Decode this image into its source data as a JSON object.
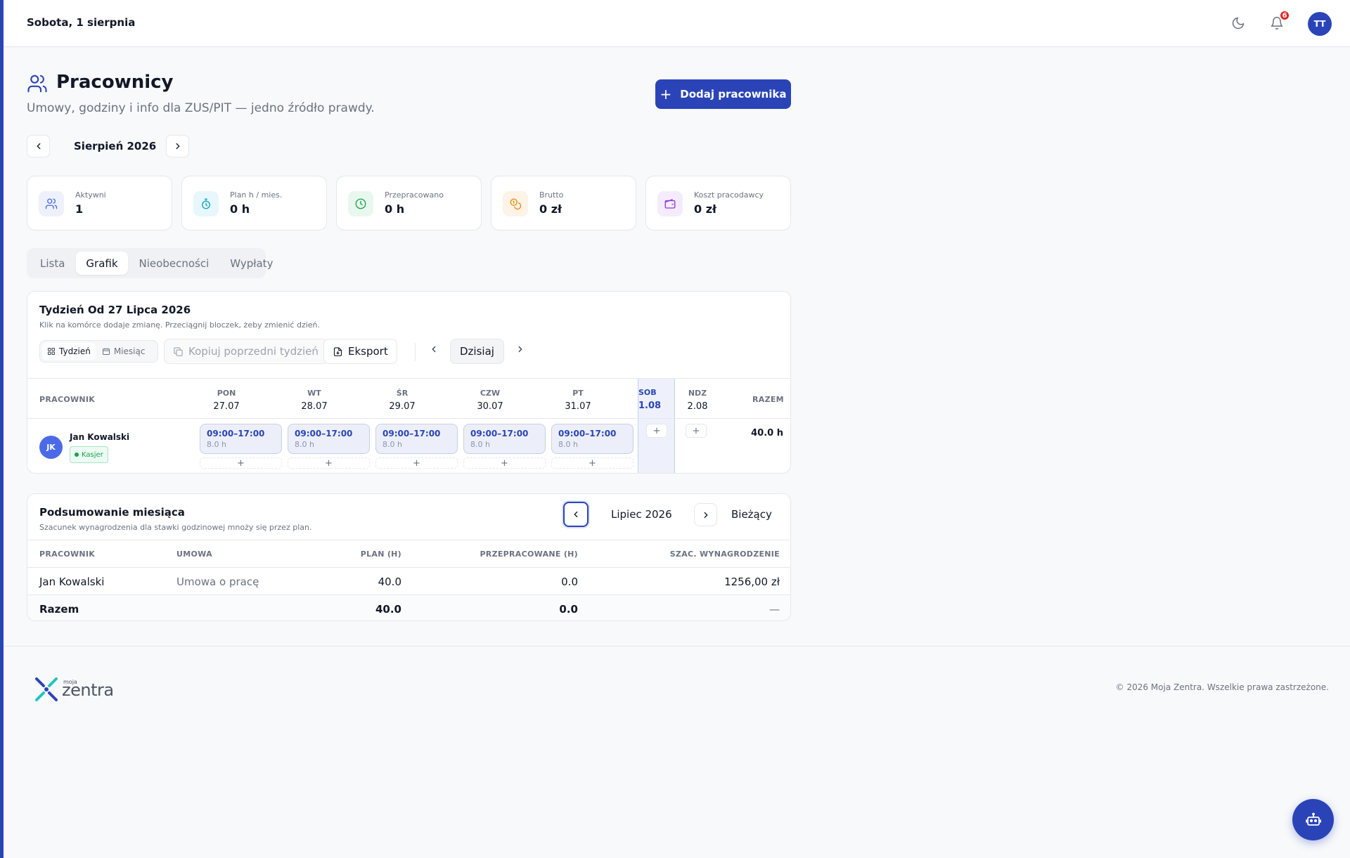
{
  "topbar": {
    "date": "Sobota, 1 sierpnia",
    "notifications_count": "6",
    "user_initials": "TT"
  },
  "header": {
    "title": "Pracownicy",
    "subtitle": "Umowy, godziny i info dla ZUS/PIT — jedno źródło prawdy.",
    "add_button_label": "Dodaj pracownika"
  },
  "month_nav": {
    "label": "Sierpień 2026"
  },
  "stats": [
    {
      "label": "Aktywni",
      "value": "1",
      "icon": "users-icon",
      "color": "#4a6ae8"
    },
    {
      "label": "Plan h / mies.",
      "value": "0 h",
      "icon": "stopwatch-icon",
      "color": "#0ea5c6"
    },
    {
      "label": "Przepracowano",
      "value": "0 h",
      "icon": "clock-icon",
      "color": "#16a34a"
    },
    {
      "label": "Brutto",
      "value": "0 zł",
      "icon": "coins-icon",
      "color": "#ea8a0c"
    },
    {
      "label": "Koszt pracodawcy",
      "value": "0 zł",
      "icon": "wallet-icon",
      "color": "#9333ea"
    }
  ],
  "tabs": [
    {
      "label": "Lista",
      "active": false
    },
    {
      "label": "Grafik",
      "active": true
    },
    {
      "label": "Nieobecności",
      "active": false
    },
    {
      "label": "Wypłaty",
      "active": false
    }
  ],
  "schedule": {
    "title": "Tydzień Od 27 Lipca 2026",
    "subtitle": "Klik na komórce dodaje zmianę. Przeciągnij bloczek, żeby zmienić dzień.",
    "view_week": "Tydzień",
    "view_month": "Miesiąc",
    "copy_label": "Kopiuj poprzedni tydzień",
    "export_label": "Eksport",
    "today_label": "Dzisiaj",
    "col_employee": "PRACOWNIK",
    "col_total": "RAZEM",
    "days": [
      {
        "name": "PON",
        "date": "27.07"
      },
      {
        "name": "WT",
        "date": "28.07"
      },
      {
        "name": "ŚR",
        "date": "29.07"
      },
      {
        "name": "CZW",
        "date": "30.07"
      },
      {
        "name": "PT",
        "date": "31.07"
      },
      {
        "name": "SOB",
        "date": "1.08"
      },
      {
        "name": "NDZ",
        "date": "2.08"
      }
    ],
    "employee": {
      "initials": "JK",
      "name": "Jan Kowalski",
      "role": "Kasjer",
      "total": "40.0 h",
      "shifts": [
        {
          "time": "09:00–17:00",
          "hours": "8.0 h"
        },
        {
          "time": "09:00–17:00",
          "hours": "8.0 h"
        },
        {
          "time": "09:00–17:00",
          "hours": "8.0 h"
        },
        {
          "time": "09:00–17:00",
          "hours": "8.0 h"
        },
        {
          "time": "09:00–17:00",
          "hours": "8.0 h"
        }
      ]
    }
  },
  "summary": {
    "title": "Podsumowanie miesiąca",
    "subtitle": "Szacunek wynagrodzenia dla stawki godzinowej mnoży się przez plan.",
    "month": "Lipiec 2026",
    "current_label": "Bieżący",
    "headers": [
      "PRACOWNIK",
      "UMOWA",
      "PLAN (H)",
      "PRZEPRACOWANE (H)",
      "SZAC. WYNAGRODZENIE"
    ],
    "row": {
      "employee": "Jan Kowalski",
      "contract": "Umowa o pracę",
      "plan": "40.0",
      "worked": "0.0",
      "salary": "1256,00 zł"
    },
    "total": {
      "label": "Razem",
      "plan": "40.0",
      "worked": "0.0",
      "salary": "—"
    }
  },
  "footer": {
    "logo_small": "moja",
    "logo_text": "zentra",
    "copyright": "© 2026 Moja Zentra. Wszelkie prawa zastrzeżone."
  }
}
